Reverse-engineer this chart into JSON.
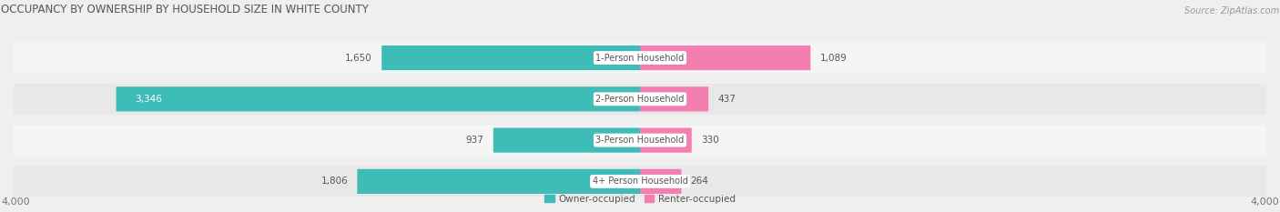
{
  "title": "OCCUPANCY BY OWNERSHIP BY HOUSEHOLD SIZE IN WHITE COUNTY",
  "source": "Source: ZipAtlas.com",
  "categories": [
    "1-Person Household",
    "2-Person Household",
    "3-Person Household",
    "4+ Person Household"
  ],
  "owner_values": [
    1650,
    3346,
    937,
    1806
  ],
  "renter_values": [
    1089,
    437,
    330,
    264
  ],
  "max_scale": 4000,
  "owner_color": "#3DBCB8",
  "renter_color": "#F47EB0",
  "bg_color": "#EFEFEF",
  "row_colors_light": "#F5F5F5",
  "row_colors_dark": "#E8E8E8",
  "title_fontsize": 8.5,
  "source_fontsize": 7,
  "axis_label_fontsize": 8,
  "bar_label_fontsize": 7.5,
  "category_fontsize": 7,
  "legend_fontsize": 7.5
}
